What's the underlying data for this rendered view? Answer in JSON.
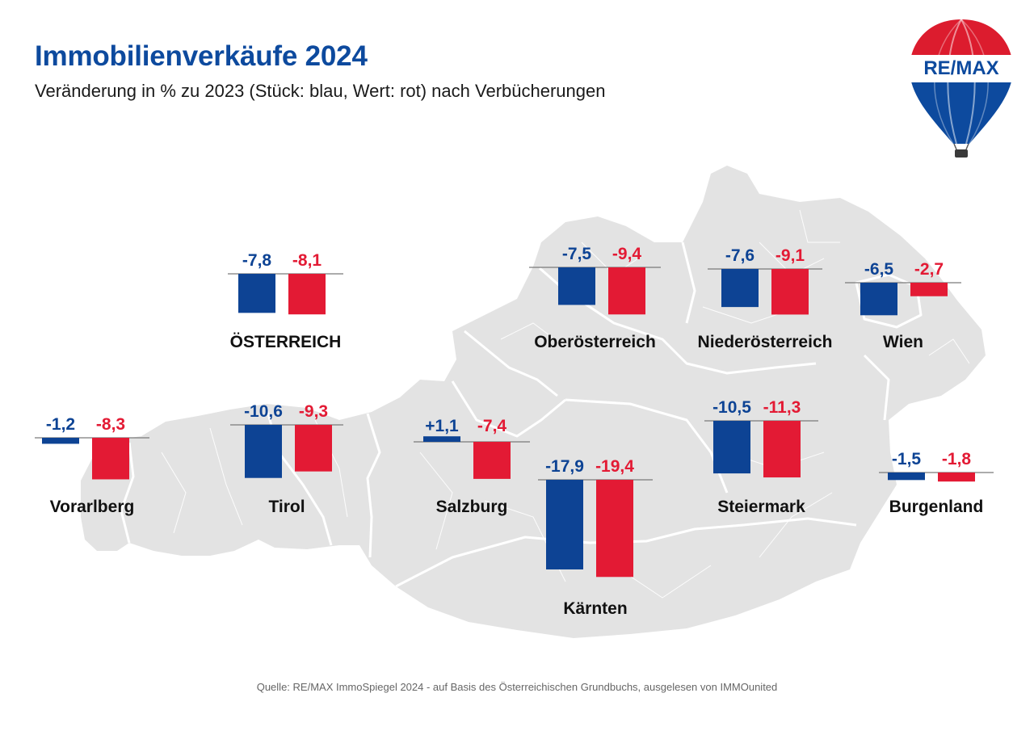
{
  "title": "Immobilienverkäufe 2024",
  "subtitle": "Veränderung in % zu 2023 (Stück: blau, Wert: rot) nach Verbücherungen",
  "source": "Quelle: RE/MAX ImmoSpiegel 2024 - auf Basis des Österreichischen Grundbuchs, ausgelesen von IMMOunited",
  "logo": {
    "text": "RE/MAX",
    "colors": [
      "#dc1c2e",
      "#ffffff",
      "#0d4a9e"
    ]
  },
  "colors": {
    "stueck": "#0d4394",
    "wert": "#e31a34",
    "map": "#e3e3e3",
    "baseline": "#7a7a7a"
  },
  "chart_data": {
    "type": "bar",
    "title": "Immobilienverkäufe 2024",
    "subtitle": "Veränderung in % zu 2023 (Stück: blau, Wert: rot) nach Verbücherungen",
    "unit": "%",
    "series_meaning": {
      "stueck": "Stück: blau",
      "wert": "Wert: rot"
    },
    "regions": [
      {
        "name": "ÖSTERREICH",
        "stueck": -7.8,
        "wert": -8.1,
        "stueck_label": "-7,8",
        "wert_label": "-8,1"
      },
      {
        "name": "Oberösterreich",
        "stueck": -7.5,
        "wert": -9.4,
        "stueck_label": "-7,5",
        "wert_label": "-9,4"
      },
      {
        "name": "Niederösterreich",
        "stueck": -7.6,
        "wert": -9.1,
        "stueck_label": "-7,6",
        "wert_label": "-9,1"
      },
      {
        "name": "Wien",
        "stueck": -6.5,
        "wert": -2.7,
        "stueck_label": "-6,5",
        "wert_label": "-2,7"
      },
      {
        "name": "Vorarlberg",
        "stueck": -1.2,
        "wert": -8.3,
        "stueck_label": "-1,2",
        "wert_label": "-8,3"
      },
      {
        "name": "Tirol",
        "stueck": -10.6,
        "wert": -9.3,
        "stueck_label": "-10,6",
        "wert_label": "-9,3"
      },
      {
        "name": "Salzburg",
        "stueck": 1.1,
        "wert": -7.4,
        "stueck_label": "+1,1",
        "wert_label": "-7,4"
      },
      {
        "name": "Kärnten",
        "stueck": -17.9,
        "wert": -19.4,
        "stueck_label": "-17,9",
        "wert_label": "-19,4"
      },
      {
        "name": "Steiermark",
        "stueck": -10.5,
        "wert": -11.3,
        "stueck_label": "-10,5",
        "wert_label": "-11,3"
      },
      {
        "name": "Burgenland",
        "stueck": -1.5,
        "wert": -1.8,
        "stueck_label": "-1,5",
        "wert_label": "-1,8"
      }
    ]
  }
}
